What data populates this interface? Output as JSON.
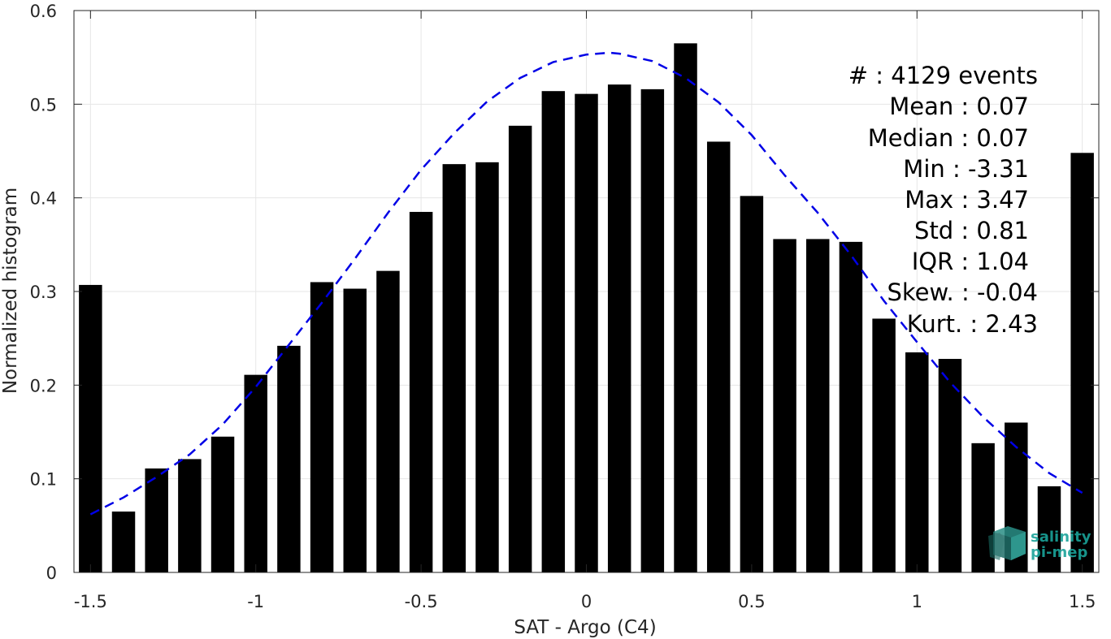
{
  "chart_data": {
    "type": "bar",
    "xlabel": "SAT - Argo (C4)",
    "ylabel": "Normalized histogram",
    "xlim": [
      -1.55,
      1.55
    ],
    "ylim": [
      0,
      0.6
    ],
    "grid": true,
    "xticks": [
      -1.5,
      -1,
      -0.5,
      0,
      0.5,
      1,
      1.5
    ],
    "xtick_labels": [
      "-1.5",
      "-1",
      "-0.5",
      "0",
      "0.5",
      "1",
      "1.5"
    ],
    "yticks": [
      0,
      0.1,
      0.2,
      0.3,
      0.4,
      0.5,
      0.6
    ],
    "ytick_labels": [
      "0",
      "0.1",
      "0.2",
      "0.3",
      "0.4",
      "0.5",
      "0.6"
    ],
    "bar_color": "#000000",
    "bar_width": 0.07,
    "bars": {
      "x": [
        -1.5,
        -1.4,
        -1.3,
        -1.2,
        -1.1,
        -1.0,
        -0.9,
        -0.8,
        -0.7,
        -0.6,
        -0.5,
        -0.4,
        -0.3,
        -0.2,
        -0.1,
        0.0,
        0.1,
        0.2,
        0.3,
        0.4,
        0.5,
        0.6,
        0.7,
        0.8,
        0.9,
        1.0,
        1.1,
        1.2,
        1.3,
        1.4,
        1.5
      ],
      "values": [
        0.307,
        0.065,
        0.111,
        0.121,
        0.145,
        0.211,
        0.242,
        0.31,
        0.303,
        0.322,
        0.385,
        0.436,
        0.438,
        0.477,
        0.514,
        0.511,
        0.521,
        0.516,
        0.565,
        0.46,
        0.402,
        0.356,
        0.356,
        0.353,
        0.271,
        0.235,
        0.228,
        0.138,
        0.16,
        0.092,
        0.448
      ]
    },
    "fit_curve": {
      "style": "dashed",
      "color": "#0000e6",
      "x": [
        -1.5,
        -1.4,
        -1.3,
        -1.2,
        -1.1,
        -1.0,
        -0.9,
        -0.8,
        -0.7,
        -0.6,
        -0.5,
        -0.4,
        -0.3,
        -0.2,
        -0.1,
        0.0,
        0.07,
        0.1,
        0.2,
        0.3,
        0.4,
        0.5,
        0.6,
        0.7,
        0.8,
        0.9,
        1.0,
        1.1,
        1.2,
        1.3,
        1.4,
        1.5
      ],
      "y": [
        0.062,
        0.08,
        0.102,
        0.126,
        0.158,
        0.198,
        0.243,
        0.288,
        0.335,
        0.384,
        0.43,
        0.469,
        0.503,
        0.528,
        0.545,
        0.553,
        0.555,
        0.554,
        0.546,
        0.528,
        0.502,
        0.467,
        0.424,
        0.384,
        0.339,
        0.29,
        0.246,
        0.203,
        0.166,
        0.134,
        0.106,
        0.085
      ]
    },
    "annotations": [
      "#  : 4129 events",
      "Mean : 0.07",
      "Median : 0.07",
      "Min : -3.31",
      "Max : 3.47",
      "Std : 0.81",
      "IQR : 1.04",
      "Skew. : -0.04",
      "Kurt. : 2.43"
    ]
  },
  "logo": {
    "line1": "salinity",
    "line2": "pi-mep",
    "color": "#1aa39a"
  }
}
